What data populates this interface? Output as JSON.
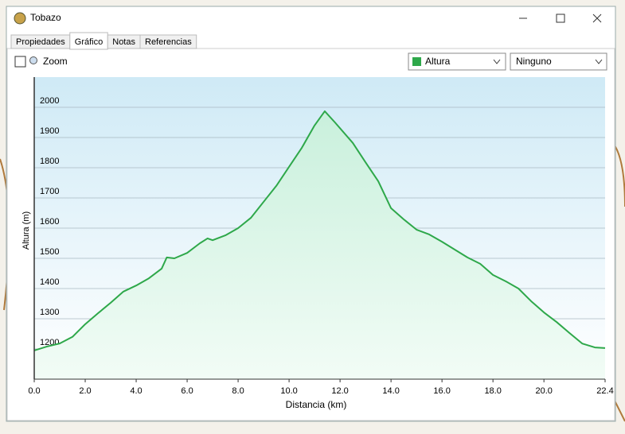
{
  "window": {
    "title": "Tobazo"
  },
  "tabs": [
    "Propiedades",
    "Gráfico",
    "Notas",
    "Referencias"
  ],
  "toolbar": {
    "zoom": "Zoom",
    "series_select": "Altura",
    "second_select": "Ninguno"
  },
  "chart_data": {
    "type": "line",
    "x_label": "Distancia  (km)",
    "y_label": "Altura (m)",
    "x": [
      0,
      0.5,
      1.0,
      1.5,
      2.0,
      2.5,
      3.0,
      3.5,
      4.0,
      4.5,
      5.0,
      5.2,
      5.5,
      6.0,
      6.5,
      6.8,
      7.0,
      7.5,
      8.0,
      8.5,
      9.0,
      9.5,
      10.0,
      10.5,
      11.0,
      11.4,
      11.8,
      12.5,
      13.0,
      13.5,
      14.0,
      14.5,
      15.0,
      15.5,
      16.0,
      16.5,
      17.0,
      17.5,
      18.0,
      18.5,
      19.0,
      19.5,
      20.0,
      20.5,
      21.0,
      21.5,
      22.0,
      22.4
    ],
    "series": [
      {
        "name": "Altura",
        "color": "#2ea84a",
        "values": [
          1195,
          1208,
          1218,
          1240,
          1282,
          1318,
          1353,
          1390,
          1410,
          1434,
          1466,
          1503,
          1500,
          1518,
          1550,
          1566,
          1560,
          1576,
          1600,
          1634,
          1687,
          1740,
          1803,
          1866,
          1940,
          1987,
          1950,
          1882,
          1818,
          1755,
          1666,
          1629,
          1595,
          1579,
          1555,
          1529,
          1503,
          1482,
          1445,
          1424,
          1400,
          1358,
          1321,
          1289,
          1253,
          1218,
          1205,
          1203
        ]
      }
    ],
    "xlim": [
      0,
      22.4
    ],
    "xticks": [
      {
        "value": 0,
        "label": "0.0"
      },
      {
        "value": 2,
        "label": "2.0"
      },
      {
        "value": 4,
        "label": "4.0"
      },
      {
        "value": 6,
        "label": "6.0"
      },
      {
        "value": 8,
        "label": "8.0"
      },
      {
        "value": 10,
        "label": "10.0"
      },
      {
        "value": 12,
        "label": "12.0"
      },
      {
        "value": 14,
        "label": "14.0"
      },
      {
        "value": 16,
        "label": "16.0"
      },
      {
        "value": 18,
        "label": "18.0"
      },
      {
        "value": 20,
        "label": "20.0"
      },
      22.4
    ],
    "ylim": [
      1100,
      2100
    ],
    "yticks": [
      1200,
      1300,
      1400,
      1500,
      1600,
      1700,
      1800,
      1900,
      2000
    ],
    "grid": true
  }
}
